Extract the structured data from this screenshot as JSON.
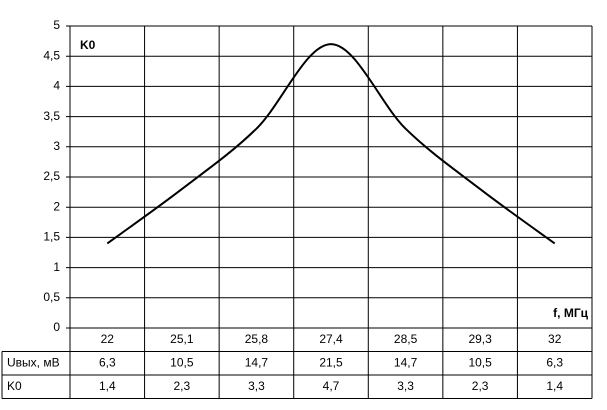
{
  "chart_data": {
    "type": "line",
    "ylabel": "K0",
    "xlabel": "f, МГц",
    "categories": [
      "22",
      "25,1",
      "25,8",
      "27,4",
      "28,5",
      "29,3",
      "32"
    ],
    "ylim": [
      0,
      5
    ],
    "yticks": [
      0,
      {
        "value": 0.5,
        "label": "0,5"
      },
      1,
      {
        "value": 1.5,
        "label": "1,5"
      },
      2,
      {
        "value": 2.5,
        "label": "2,5"
      },
      3,
      {
        "value": 3.5,
        "label": "3,5"
      },
      4,
      {
        "value": 4.5,
        "label": "4,5"
      },
      5
    ],
    "grid": true,
    "series": [
      {
        "name": "Uвых, мВ",
        "values": [
          6.3,
          10.5,
          14.7,
          21.5,
          14.7,
          10.5,
          6.3
        ],
        "value_labels": [
          "6,3",
          "10,5",
          "14,7",
          "21,5",
          "14,7",
          "10,5",
          "6,3"
        ],
        "plot": false
      },
      {
        "name": "K0",
        "values": [
          1.4,
          2.3,
          3.3,
          4.7,
          3.3,
          2.3,
          1.4
        ],
        "value_labels": [
          "1,4",
          "2,3",
          "3,3",
          "4,7",
          "3,3",
          "2,3",
          "1,4"
        ],
        "color": "#000000",
        "plot": true
      }
    ]
  }
}
